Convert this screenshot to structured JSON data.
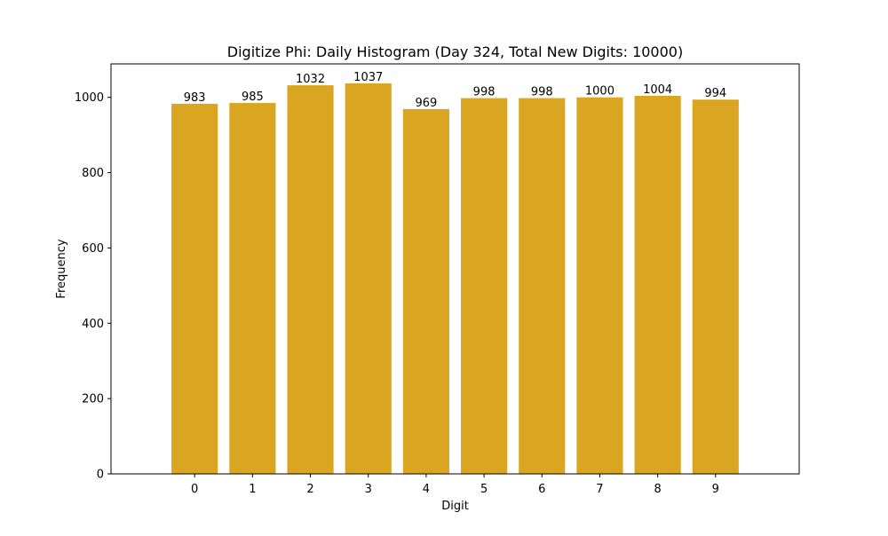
{
  "chart_data": {
    "type": "bar",
    "title": "Digitize Phi: Daily Histogram (Day 324, Total New Digits: 10000)",
    "xlabel": "Digit",
    "ylabel": "Frequency",
    "categories": [
      "0",
      "1",
      "2",
      "3",
      "4",
      "5",
      "6",
      "7",
      "8",
      "9"
    ],
    "values": [
      983,
      985,
      1032,
      1037,
      969,
      998,
      998,
      1000,
      1004,
      994
    ],
    "data_labels": [
      "983",
      "985",
      "1032",
      "1037",
      "969",
      "998",
      "998",
      "1000",
      "1004",
      "994"
    ],
    "ylim": [
      0,
      1088.85
    ],
    "yticks": [
      0,
      200,
      400,
      600,
      800,
      1000
    ],
    "bar_color": "#DAA520",
    "grid": false,
    "legend": "none"
  }
}
